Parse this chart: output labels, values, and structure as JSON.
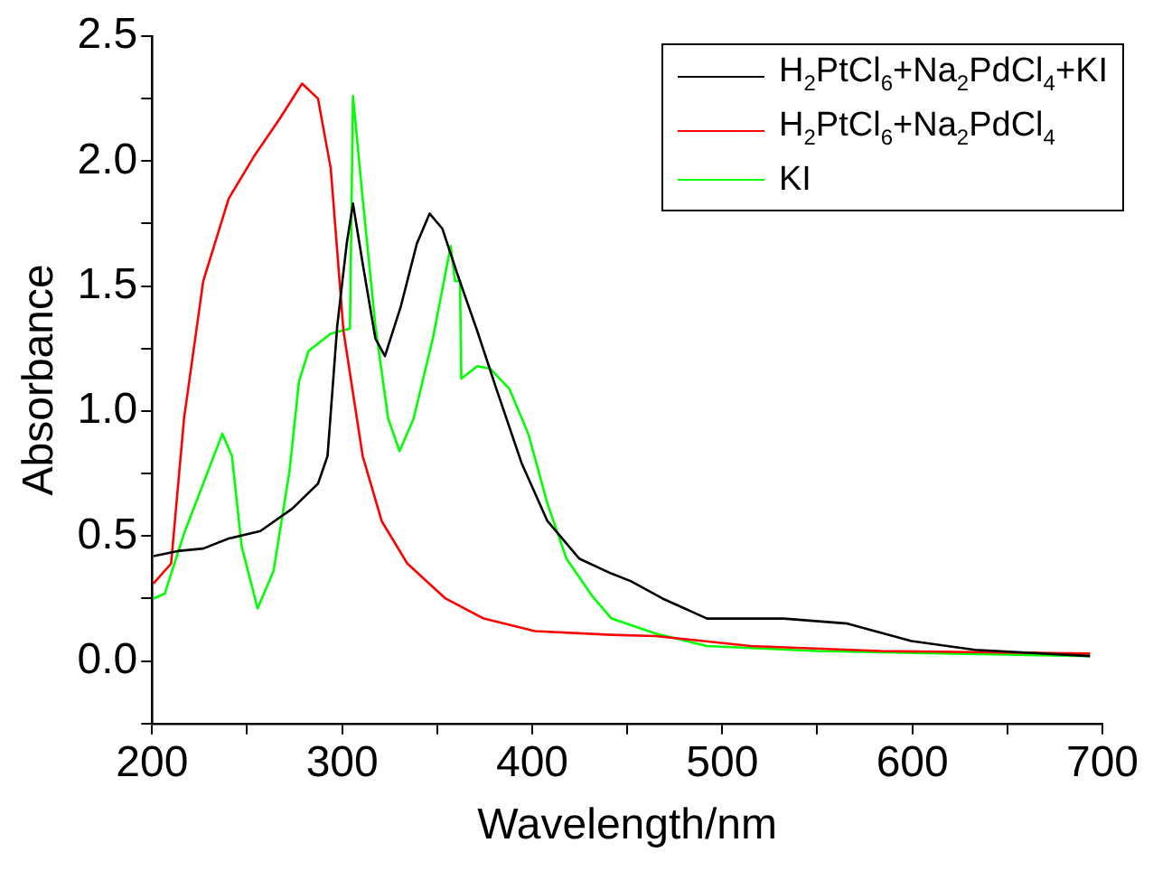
{
  "chart_data": {
    "type": "line",
    "xlabel": "Wavelength/nm",
    "ylabel": "Absorbance",
    "xlim": [
      200,
      700
    ],
    "ylim": [
      -0.25,
      2.5
    ],
    "xticks": [
      200,
      {
        "value": 250,
        "label": null
      },
      300,
      {
        "value": 350,
        "label": null
      },
      400,
      {
        "value": 450,
        "label": null
      },
      500,
      {
        "value": 550,
        "label": null
      },
      600,
      {
        "value": 650,
        "label": null
      },
      700
    ],
    "yticks": [
      {
        "value": -0.25,
        "label": null
      },
      {
        "value": 0,
        "label": "0.0"
      },
      {
        "value": 0.25,
        "label": null
      },
      0.5,
      {
        "value": 0.75,
        "label": null
      },
      {
        "value": 1,
        "label": "1.0"
      },
      {
        "value": 1.25,
        "label": null
      },
      1.5,
      {
        "value": 1.75,
        "label": null
      },
      {
        "value": 2,
        "label": "2.0"
      },
      {
        "value": 2.25,
        "label": null
      },
      2.5
    ],
    "grid": false,
    "legend": "top right",
    "marker": "none",
    "line_style": "solid",
    "series": [
      {
        "name": "H$_{2}$PtCl$_{6}$+Na$_{2}$PdCl$_{4}$+KI",
        "color": "#000000",
        "x": [
          200.7,
          213.4,
          226.9,
          240.3,
          257,
          273.8,
          287.3,
          292.3,
          297.4,
          302.4,
          305.7,
          310.8,
          317.5,
          322.5,
          330.9,
          339.3,
          346,
          352.7,
          361,
          371.1,
          381.1,
          394.5,
          408,
          424.7,
          441.7,
          451.8,
          468.6,
          492,
          532.3,
          565.9,
          599.5,
          633,
          693.5
        ],
        "values": [
          0.42,
          0.44,
          0.45,
          0.49,
          0.52,
          0.61,
          0.71,
          0.82,
          1.34,
          1.67,
          1.83,
          1.59,
          1.29,
          1.22,
          1.42,
          1.67,
          1.79,
          1.73,
          1.54,
          1.32,
          1.09,
          0.79,
          0.56,
          0.41,
          0.35,
          0.32,
          0.25,
          0.17,
          0.17,
          0.15,
          0.08,
          0.045,
          0.02
        ]
      },
      {
        "name": "H$_{2}$PtCl$_{6}$+Na$_{2}$PdCl$_{4}$",
        "color": "#ff0000",
        "x": [
          200.7,
          210,
          216.8,
          226.9,
          240.3,
          253.7,
          267.2,
          278.9,
          287.3,
          294,
          300.7,
          310.8,
          320.8,
          334.3,
          354.4,
          374.5,
          401.4,
          441.7,
          465,
          515,
          583,
          693.5
        ],
        "values": [
          0.31,
          0.39,
          0.97,
          1.52,
          1.85,
          2.02,
          2.17,
          2.31,
          2.25,
          1.97,
          1.32,
          0.82,
          0.56,
          0.39,
          0.25,
          0.17,
          0.12,
          0.105,
          0.1,
          0.06,
          0.04,
          0.03
        ]
      },
      {
        "name": "KI",
        "color": "#00ff00",
        "x": [
          200.7,
          206.7,
          216.8,
          226.9,
          237,
          242,
          247.1,
          255.5,
          263.9,
          272.3,
          277.3,
          282.3,
          294,
          304.1,
          305.7,
          310.8,
          317.5,
          324.2,
          330.2,
          337.6,
          347.7,
          357.1,
          359.4,
          362,
          362.7,
          371.1,
          377.8,
          387.9,
          397.9,
          408,
          418,
          431.6,
          441.7,
          465,
          492,
          549.5,
          693.5
        ],
        "values": [
          0.25,
          0.27,
          0.51,
          0.71,
          0.91,
          0.82,
          0.46,
          0.21,
          0.36,
          0.76,
          1.12,
          1.24,
          1.31,
          1.33,
          2.26,
          1.85,
          1.34,
          0.97,
          0.84,
          0.97,
          1.29,
          1.66,
          1.52,
          1.52,
          1.13,
          1.18,
          1.17,
          1.09,
          0.91,
          0.63,
          0.41,
          0.26,
          0.17,
          0.11,
          0.06,
          0.04,
          0.02
        ]
      }
    ]
  }
}
